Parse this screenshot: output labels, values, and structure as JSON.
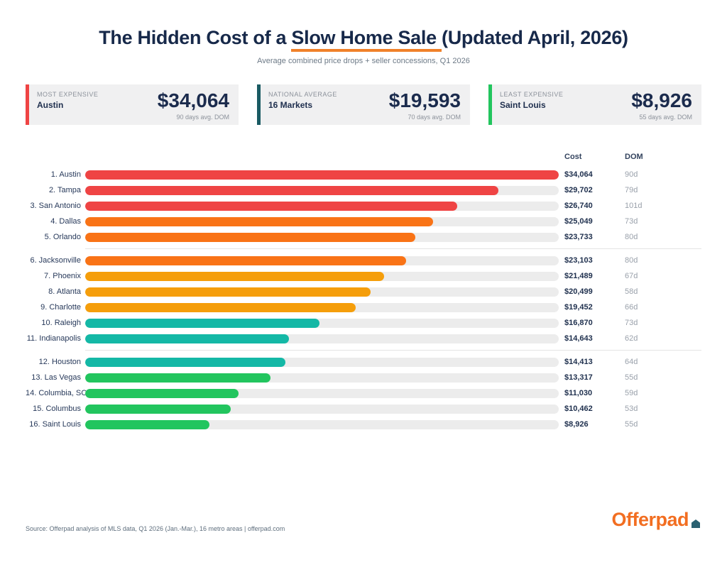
{
  "page": {
    "title_prefix": "The Hidden Cost of a ",
    "title_highlight": "Slow Home Sale ",
    "title_suffix": "(Updated April, 2026)",
    "subtitle": "Average combined price drops + seller concessions, Q1 2026",
    "source": "Source: Offerpad analysis of MLS data, Q1 2026 (Jan.-Mar.), 16 metro areas | offerpad.com",
    "logo_text": "Offerpad"
  },
  "colors": {
    "title_underline": "#f0812a",
    "red": "#ef4444",
    "orange": "#f97316",
    "amber": "#f59e0b",
    "teal": "#14b8a6",
    "green": "#22c55e",
    "dark_teal_accent": "#1a5b63",
    "track_gray": "#ececec",
    "logo_orange": "#f26e21",
    "logo_house": "#2a6171"
  },
  "stat_cards": [
    {
      "label": "MOST EXPENSIVE",
      "name": "Austin",
      "value": "$34,064",
      "sub": "90 days avg. DOM",
      "accent": "#ef4444"
    },
    {
      "label": "NATIONAL AVERAGE",
      "name": "16 Markets",
      "value": "$19,593",
      "sub": "70 days avg. DOM",
      "accent": "#1a5b63"
    },
    {
      "label": "LEAST EXPENSIVE",
      "name": "Saint Louis",
      "value": "$8,926",
      "sub": "55 days avg. DOM",
      "accent": "#22c55e"
    }
  ],
  "chart_data": {
    "type": "bar",
    "orientation": "horizontal",
    "title": "The Hidden Cost of a Slow Home Sale (Updated April, 2026)",
    "subtitle": "Average combined price drops + seller concessions, Q1 2026",
    "columns": {
      "cost": "Cost",
      "dom": "DOM"
    },
    "max_value": 34064,
    "xlim": [
      0,
      34064
    ],
    "grid": false,
    "rows": [
      {
        "rank": 1,
        "label": "1. Austin",
        "city": "Austin",
        "value": 34064,
        "cost": "$34,064",
        "dom": "90d",
        "color": "#ef4444",
        "divider_after": false
      },
      {
        "rank": 2,
        "label": "2. Tampa",
        "city": "Tampa",
        "value": 29702,
        "cost": "$29,702",
        "dom": "79d",
        "color": "#ef4444",
        "divider_after": false
      },
      {
        "rank": 3,
        "label": "3. San Antonio",
        "city": "San Antonio",
        "value": 26740,
        "cost": "$26,740",
        "dom": "101d",
        "color": "#ef4444",
        "divider_after": false
      },
      {
        "rank": 4,
        "label": "4. Dallas",
        "city": "Dallas",
        "value": 25049,
        "cost": "$25,049",
        "dom": "73d",
        "color": "#f97316",
        "divider_after": false
      },
      {
        "rank": 5,
        "label": "5. Orlando",
        "city": "Orlando",
        "value": 23733,
        "cost": "$23,733",
        "dom": "80d",
        "color": "#f97316",
        "divider_after": true
      },
      {
        "rank": 6,
        "label": "6. Jacksonville",
        "city": "Jacksonville",
        "value": 23103,
        "cost": "$23,103",
        "dom": "80d",
        "color": "#f97316",
        "divider_after": false
      },
      {
        "rank": 7,
        "label": "7. Phoenix",
        "city": "Phoenix",
        "value": 21489,
        "cost": "$21,489",
        "dom": "67d",
        "color": "#f59e0b",
        "divider_after": false
      },
      {
        "rank": 8,
        "label": "8. Atlanta",
        "city": "Atlanta",
        "value": 20499,
        "cost": "$20,499",
        "dom": "58d",
        "color": "#f59e0b",
        "divider_after": false
      },
      {
        "rank": 9,
        "label": "9. Charlotte",
        "city": "Charlotte",
        "value": 19452,
        "cost": "$19,452",
        "dom": "66d",
        "color": "#f59e0b",
        "divider_after": false
      },
      {
        "rank": 10,
        "label": "10. Raleigh",
        "city": "Raleigh",
        "value": 16870,
        "cost": "$16,870",
        "dom": "73d",
        "color": "#14b8a6",
        "divider_after": false
      },
      {
        "rank": 11,
        "label": "11. Indianapolis",
        "city": "Indianapolis",
        "value": 14643,
        "cost": "$14,643",
        "dom": "62d",
        "color": "#14b8a6",
        "divider_after": true
      },
      {
        "rank": 12,
        "label": "12. Houston",
        "city": "Houston",
        "value": 14413,
        "cost": "$14,413",
        "dom": "64d",
        "color": "#14b8a6",
        "divider_after": false
      },
      {
        "rank": 13,
        "label": "13. Las Vegas",
        "city": "Las Vegas",
        "value": 13317,
        "cost": "$13,317",
        "dom": "55d",
        "color": "#22c55e",
        "divider_after": false
      },
      {
        "rank": 14,
        "label": "14. Columbia, SC",
        "city": "Columbia, SC",
        "value": 11030,
        "cost": "$11,030",
        "dom": "59d",
        "color": "#22c55e",
        "divider_after": false
      },
      {
        "rank": 15,
        "label": "15. Columbus",
        "city": "Columbus",
        "value": 10462,
        "cost": "$10,462",
        "dom": "53d",
        "color": "#22c55e",
        "divider_after": false
      },
      {
        "rank": 16,
        "label": "16. Saint Louis",
        "city": "Saint Louis",
        "value": 8926,
        "cost": "$8,926",
        "dom": "55d",
        "color": "#22c55e",
        "divider_after": false
      }
    ]
  }
}
